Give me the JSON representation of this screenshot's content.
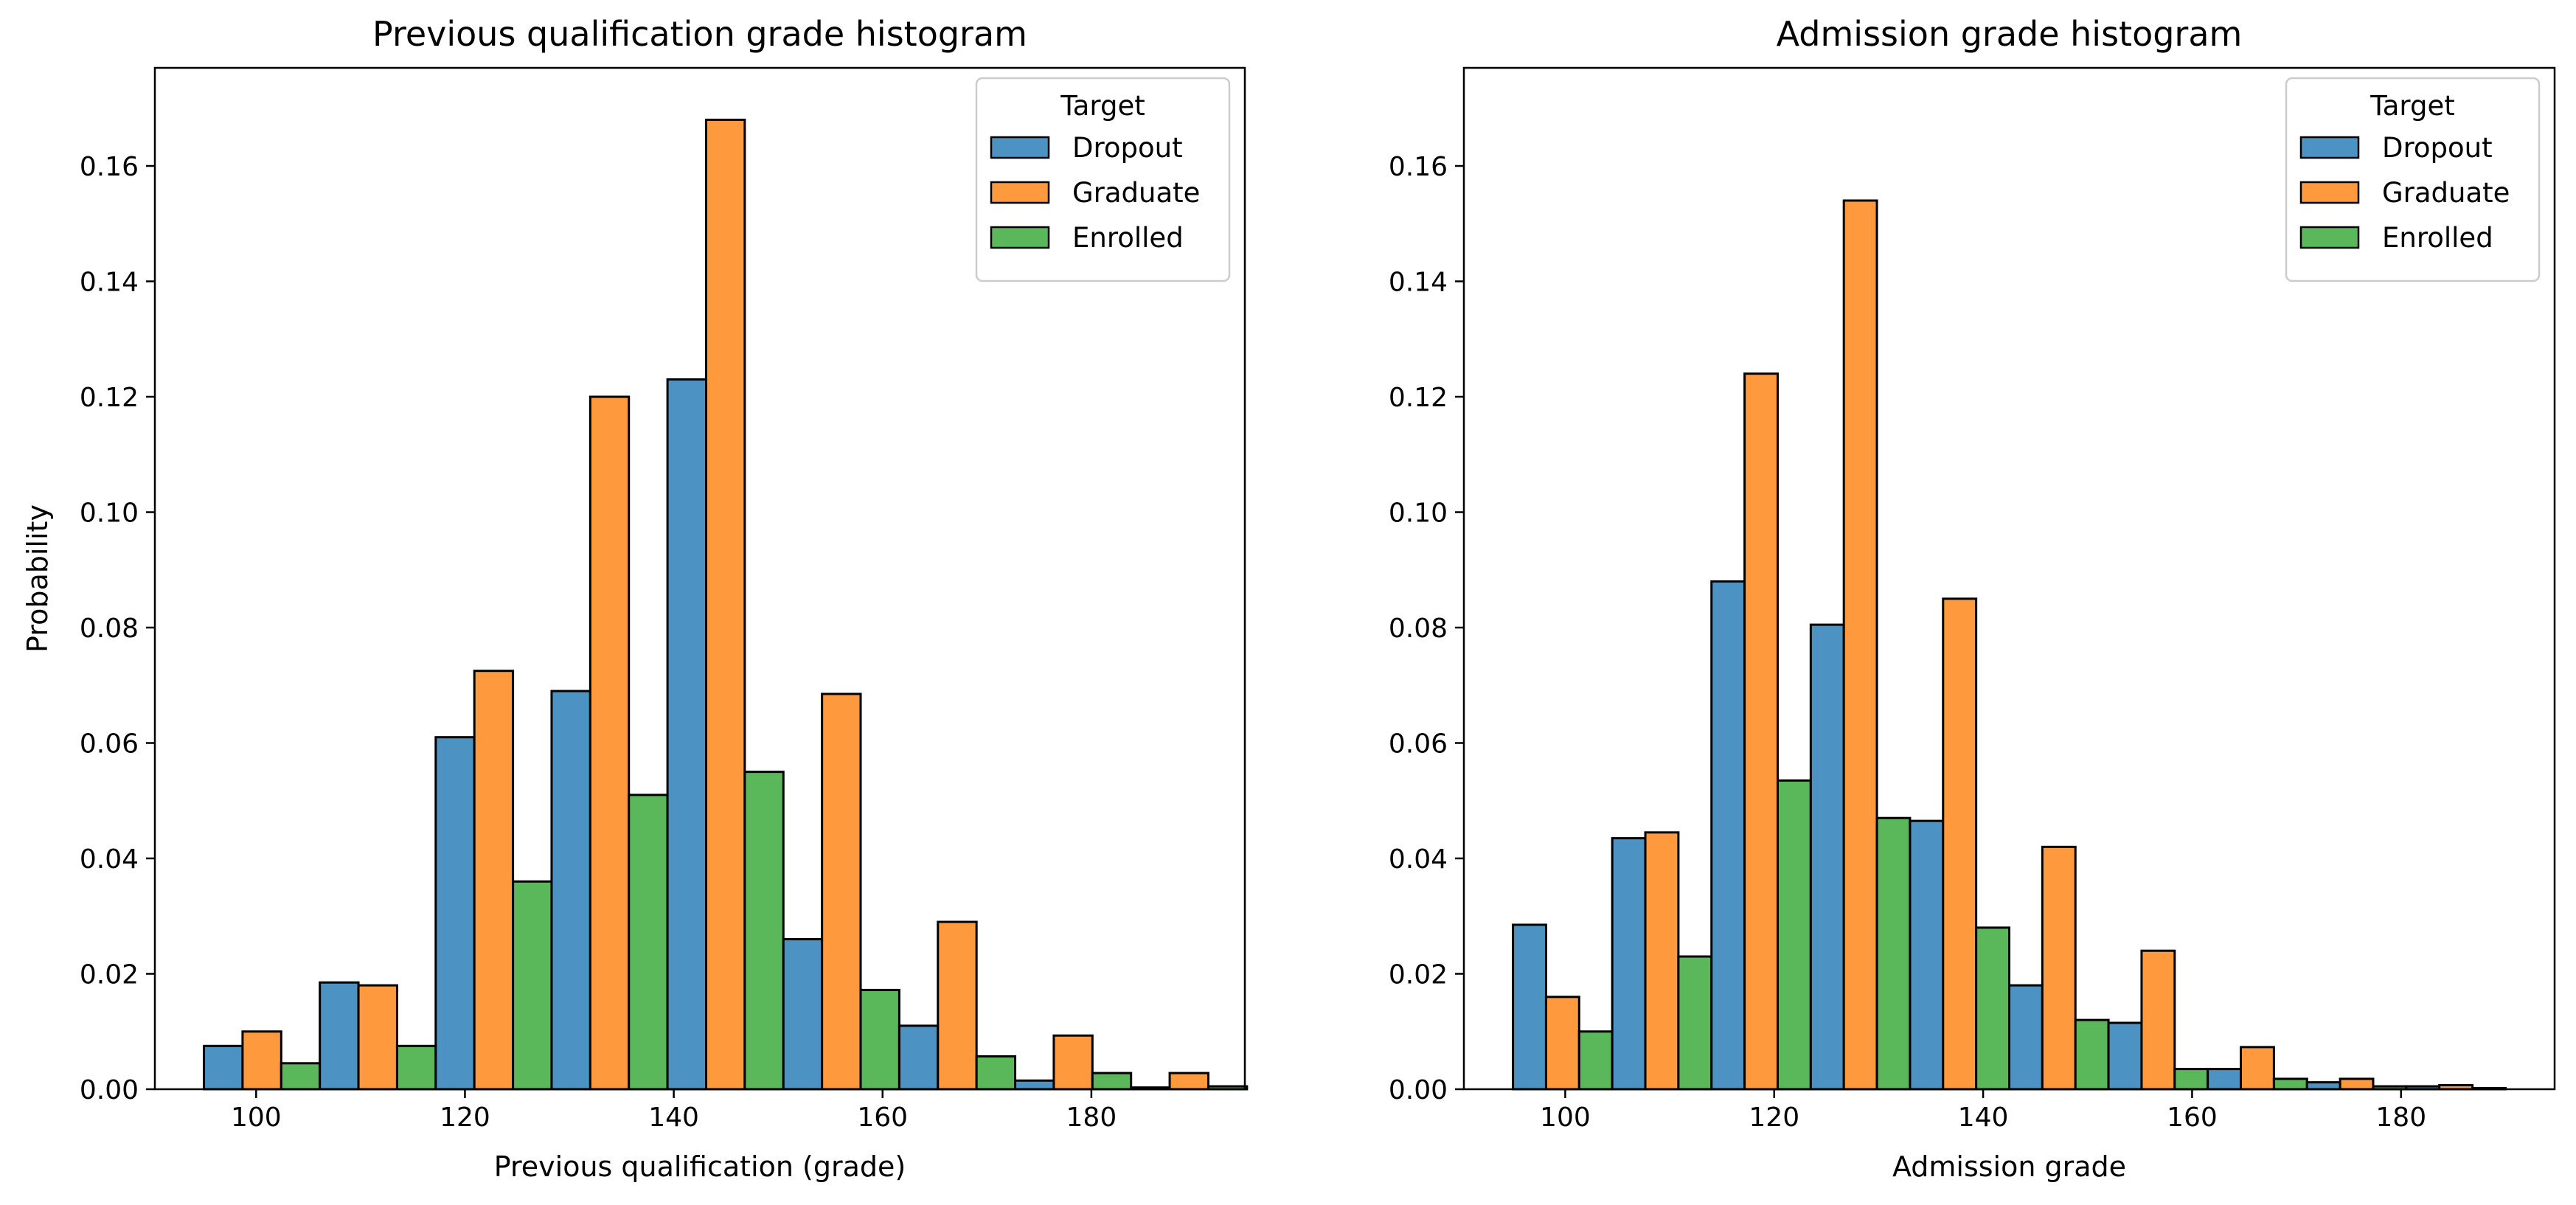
{
  "colors": {
    "Dropout": "#4c92c3",
    "Graduate": "#ff993e",
    "Enrolled": "#5ab85a",
    "edge": "#000000",
    "legend_edge": "#cccccc"
  },
  "chart_data": [
    {
      "type": "bar",
      "title": "Previous qualification grade histogram",
      "xlabel": "Previous qualification (grade)",
      "ylabel": "Probability",
      "xlim": [
        90.3,
        194.7
      ],
      "ylim": [
        0,
        0.177
      ],
      "xticks": [
        100,
        120,
        140,
        160,
        180
      ],
      "yticks": [
        0.0,
        0.02,
        0.04,
        0.06,
        0.08,
        0.1,
        0.12,
        0.14,
        0.16
      ],
      "xtick_labels": [
        "100",
        "120",
        "140",
        "160",
        "180"
      ],
      "ytick_labels": [
        "0.00",
        "0.02",
        "0.04",
        "0.06",
        "0.08",
        "0.10",
        "0.12",
        "0.14",
        "0.16"
      ],
      "grid": false,
      "legend": {
        "title": "Target",
        "position": "top-right",
        "entries": [
          "Dropout",
          "Graduate",
          "Enrolled"
        ]
      },
      "bin_edges": [
        95,
        106.1,
        117.2,
        128.3,
        139.4,
        150.5,
        161.6,
        172.7,
        183.8,
        194.9
      ],
      "bin_count_shown": 9,
      "x_range": [
        95,
        190
      ],
      "series": [
        {
          "name": "Dropout",
          "values": [
            0.0075,
            0.0185,
            0.061,
            0.069,
            0.123,
            0.026,
            0.011,
            0.0015,
            0.0003
          ]
        },
        {
          "name": "Graduate",
          "values": [
            0.01,
            0.018,
            0.0725,
            0.12,
            0.168,
            0.0685,
            0.029,
            0.0093,
            0.0028
          ]
        },
        {
          "name": "Enrolled",
          "values": [
            0.0045,
            0.0075,
            0.036,
            0.051,
            0.055,
            0.0172,
            0.0057,
            0.0028,
            0.0005
          ]
        }
      ]
    },
    {
      "type": "bar",
      "title": "Admission grade histogram",
      "xlabel": "Admission grade",
      "ylabel": "",
      "xlim": [
        90.3,
        194.7
      ],
      "ylim": [
        0,
        0.177
      ],
      "xticks": [
        100,
        120,
        140,
        160,
        180
      ],
      "yticks": [
        0.0,
        0.02,
        0.04,
        0.06,
        0.08,
        0.1,
        0.12,
        0.14,
        0.16
      ],
      "xtick_labels": [
        "100",
        "120",
        "140",
        "160",
        "180"
      ],
      "ytick_labels": [
        "0.00",
        "0.02",
        "0.04",
        "0.06",
        "0.08",
        "0.10",
        "0.12",
        "0.14",
        "0.16"
      ],
      "grid": false,
      "legend": {
        "title": "Target",
        "position": "top-right",
        "entries": [
          "Dropout",
          "Graduate",
          "Enrolled"
        ]
      },
      "bin_edges": [
        95,
        104.5,
        114,
        123.5,
        133,
        142.5,
        152,
        161.5,
        171,
        180.5,
        190
      ],
      "x_range": [
        95,
        190
      ],
      "series": [
        {
          "name": "Dropout",
          "values": [
            0.0285,
            0.0435,
            0.088,
            0.0805,
            0.0465,
            0.018,
            0.0115,
            0.0035,
            0.0012,
            0.0005
          ]
        },
        {
          "name": "Graduate",
          "values": [
            0.016,
            0.0445,
            0.124,
            0.154,
            0.085,
            0.042,
            0.024,
            0.0073,
            0.0018,
            0.0007
          ]
        },
        {
          "name": "Enrolled",
          "values": [
            0.01,
            0.023,
            0.0535,
            0.047,
            0.028,
            0.012,
            0.0035,
            0.0018,
            0.0005,
            0.0002
          ]
        }
      ]
    }
  ]
}
